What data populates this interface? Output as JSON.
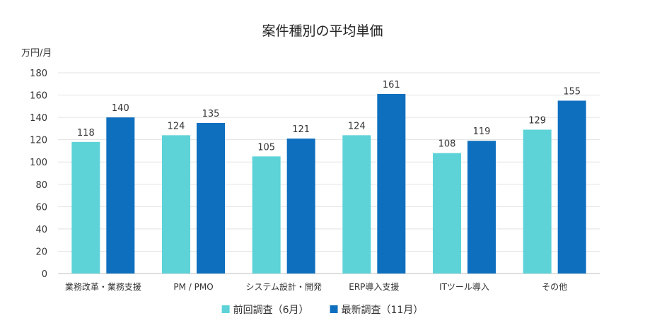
{
  "chart_data": {
    "type": "bar",
    "title": "案件種別の平均単価",
    "ylabel": "万円/月",
    "xlabel": "",
    "ylim": [
      0,
      180
    ],
    "yticks": [
      0,
      20,
      40,
      60,
      80,
      100,
      120,
      140,
      160,
      180
    ],
    "grid": true,
    "legend_position": "bottom",
    "categories": [
      "業務改革・業務支援",
      "PM / PMO",
      "システム設計・開発",
      "ERP導入支援",
      "ITツール導入",
      "その他"
    ],
    "series": [
      {
        "name": "前回調査（6月）",
        "color": "#5dd3d8",
        "values": [
          118,
          124,
          105,
          124,
          108,
          129
        ]
      },
      {
        "name": "最新調査（11月）",
        "color": "#0e6fbf",
        "values": [
          140,
          135,
          121,
          161,
          119,
          155
        ]
      }
    ]
  }
}
